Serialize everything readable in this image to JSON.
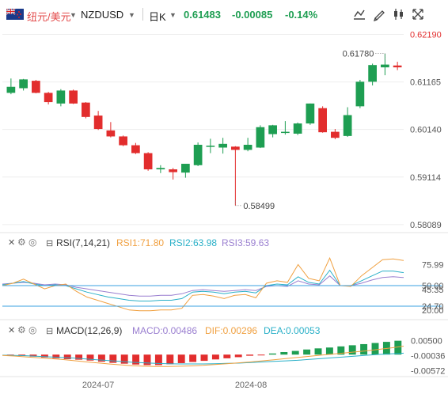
{
  "header": {
    "pair_cn": "纽元/美元",
    "symbol": "NZDUSD",
    "period": "日K",
    "last": "0.61483",
    "change": "-0.00085",
    "change_pct": "-0.14%"
  },
  "colors": {
    "up": "#1e9e52",
    "down": "#e22d2d",
    "rsi1": "#f0a040",
    "rsi2": "#2ab0c8",
    "rsi3": "#9a7fd0",
    "dif": "#f0a040",
    "dea": "#2ab0c8",
    "hline": "#3aa0e0"
  },
  "chart_data": [
    {
      "type": "candlestick",
      "title": "NZDUSD 日K",
      "y_ticks": [
        "0.62190",
        "0.61165",
        "0.60140",
        "0.59114",
        "0.58089"
      ],
      "ylim": [
        0.5795,
        0.6225
      ],
      "x_ticks": [
        "2024-07",
        "2024-08"
      ],
      "annotations": {
        "high": "0.61780",
        "low": "0.58499"
      },
      "candles": [
        {
          "o": 0.6093,
          "h": 0.6124,
          "c": 0.6106,
          "l": 0.609
        },
        {
          "o": 0.6103,
          "h": 0.6123,
          "c": 0.6122,
          "l": 0.6098
        },
        {
          "o": 0.6119,
          "h": 0.6121,
          "c": 0.6093,
          "l": 0.6092
        },
        {
          "o": 0.6093,
          "h": 0.6095,
          "c": 0.6073,
          "l": 0.6068
        },
        {
          "o": 0.607,
          "h": 0.6101,
          "c": 0.6098,
          "l": 0.6064
        },
        {
          "o": 0.6098,
          "h": 0.61,
          "c": 0.607,
          "l": 0.6069
        },
        {
          "o": 0.6072,
          "h": 0.6073,
          "c": 0.6041,
          "l": 0.6038
        },
        {
          "o": 0.6044,
          "h": 0.6054,
          "c": 0.6015,
          "l": 0.6013
        },
        {
          "o": 0.6012,
          "h": 0.603,
          "c": 0.5999,
          "l": 0.5997
        },
        {
          "o": 0.5999,
          "h": 0.6001,
          "c": 0.598,
          "l": 0.5978
        },
        {
          "o": 0.598,
          "h": 0.5985,
          "c": 0.5963,
          "l": 0.5961
        },
        {
          "o": 0.5963,
          "h": 0.5965,
          "c": 0.5928,
          "l": 0.5925
        },
        {
          "o": 0.5928,
          "h": 0.5937,
          "c": 0.5931,
          "l": 0.592
        },
        {
          "o": 0.5928,
          "h": 0.5931,
          "c": 0.5922,
          "l": 0.5906
        },
        {
          "o": 0.5921,
          "h": 0.5939,
          "c": 0.594,
          "l": 0.591
        },
        {
          "o": 0.5937,
          "h": 0.5986,
          "c": 0.5981,
          "l": 0.5935
        },
        {
          "o": 0.5977,
          "h": 0.5994,
          "c": 0.5979,
          "l": 0.5963
        },
        {
          "o": 0.5975,
          "h": 0.5996,
          "c": 0.5983,
          "l": 0.5962
        },
        {
          "o": 0.5977,
          "h": 0.5978,
          "c": 0.597,
          "l": 0.585
        },
        {
          "o": 0.597,
          "h": 0.5996,
          "c": 0.5981,
          "l": 0.5967
        },
        {
          "o": 0.5975,
          "h": 0.6023,
          "c": 0.6019,
          "l": 0.5974
        },
        {
          "o": 0.6004,
          "h": 0.6024,
          "c": 0.6023,
          "l": 0.5997
        },
        {
          "o": 0.6009,
          "h": 0.6032,
          "c": 0.6009,
          "l": 0.6003
        },
        {
          "o": 0.6005,
          "h": 0.6029,
          "c": 0.6027,
          "l": 0.6002
        },
        {
          "o": 0.6027,
          "h": 0.607,
          "c": 0.607,
          "l": 0.6024
        },
        {
          "o": 0.606,
          "h": 0.6064,
          "c": 0.6008,
          "l": 0.6007
        },
        {
          "o": 0.6009,
          "h": 0.6015,
          "c": 0.5996,
          "l": 0.5993
        },
        {
          "o": 0.6,
          "h": 0.6062,
          "c": 0.6045,
          "l": 0.5998
        },
        {
          "o": 0.6064,
          "h": 0.6121,
          "c": 0.6117,
          "l": 0.606
        },
        {
          "o": 0.6117,
          "h": 0.6156,
          "c": 0.6153,
          "l": 0.6109
        },
        {
          "o": 0.6148,
          "h": 0.6178,
          "c": 0.6154,
          "l": 0.6131
        },
        {
          "o": 0.6152,
          "h": 0.616,
          "c": 0.6148,
          "l": 0.6142
        }
      ]
    },
    {
      "type": "line",
      "title": "RSI(7,14,21)",
      "series": [
        {
          "name": "RSI1:71.80",
          "values": [
            50,
            53,
            58,
            52,
            46,
            50,
            52,
            43,
            36,
            32,
            28,
            24,
            20,
            19,
            19,
            20,
            20,
            22,
            38,
            39,
            37,
            34,
            38,
            39,
            35,
            53,
            56,
            54,
            76,
            59,
            56,
            84,
            50,
            49,
            62,
            72,
            82,
            83,
            81
          ]
        },
        {
          "name": "RSI2:63.98",
          "values": [
            51,
            53,
            55,
            52,
            50,
            51,
            50,
            46,
            42,
            39,
            36,
            34,
            32,
            31,
            31,
            32,
            32,
            34,
            42,
            43,
            42,
            40,
            42,
            43,
            41,
            50,
            52,
            51,
            61,
            54,
            52,
            69,
            50,
            50,
            56,
            62,
            68,
            68,
            66
          ]
        },
        {
          "name": "RSI3:59.63",
          "values": [
            52,
            53,
            54,
            53,
            51,
            52,
            51,
            48,
            46,
            44,
            42,
            40,
            38,
            37,
            37,
            38,
            38,
            40,
            44,
            45,
            44,
            43,
            44,
            45,
            44,
            49,
            50,
            49,
            56,
            52,
            51,
            62,
            50,
            50,
            53,
            57,
            60,
            61,
            60
          ]
        }
      ],
      "y_ticks": [
        "75.99",
        "50.00",
        "45.35",
        "24.70",
        "20.00"
      ],
      "ylim": [
        10,
        92
      ]
    },
    {
      "type": "bar",
      "title": "MACD(12,26,9)",
      "series": [
        {
          "name": "MACD:0.00486",
          "values": [
            -0.0002,
            -0.0004,
            -0.0007,
            -0.001,
            -0.0013,
            -0.0016,
            -0.0018,
            -0.0021,
            -0.0025,
            -0.0029,
            -0.0032,
            -0.0035,
            -0.0037,
            -0.0037,
            -0.0034,
            -0.003,
            -0.0026,
            -0.0022,
            -0.0017,
            -0.0013,
            -0.0009,
            -0.0004,
            -0.0001,
            0.0004,
            0.0009,
            0.0013,
            0.0018,
            0.0022,
            0.0025,
            0.0029,
            0.0033,
            0.0037,
            0.0041,
            0.0045,
            0.0049
          ]
        },
        {
          "name": "DIF:0.00296",
          "values": [
            -0.0003,
            -0.0005,
            -0.0008,
            -0.0011,
            -0.0014,
            -0.0017,
            -0.0021,
            -0.0025,
            -0.0029,
            -0.0033,
            -0.0036,
            -0.0039,
            -0.0041,
            -0.0042,
            -0.0042,
            -0.0041,
            -0.004,
            -0.0038,
            -0.0035,
            -0.0032,
            -0.0029,
            -0.0026,
            -0.0022,
            -0.0018,
            -0.0014,
            -0.001,
            -0.0006,
            -0.0002,
            0.0002,
            0.0006,
            0.001,
            0.0014,
            0.0019,
            0.0024,
            0.003
          ]
        },
        {
          "name": "DEA:0.00053",
          "values": [
            -0.0002,
            -0.0003,
            -0.0004,
            -0.0006,
            -0.0008,
            -0.001,
            -0.0012,
            -0.0015,
            -0.0018,
            -0.0021,
            -0.0024,
            -0.0027,
            -0.0029,
            -0.0031,
            -0.0032,
            -0.0033,
            -0.0033,
            -0.0033,
            -0.0032,
            -0.0031,
            -0.003,
            -0.0028,
            -0.0026,
            -0.0024,
            -0.0022,
            -0.002,
            -0.0017,
            -0.0014,
            -0.0011,
            -0.0008,
            -0.0005,
            -0.0002,
            0.0001,
            0.0003,
            0.0005
          ]
        }
      ],
      "y_ticks": [
        "0.00500",
        "-0.00036",
        "-0.00572"
      ],
      "ylim": [
        -0.0072,
        0.0062
      ]
    }
  ]
}
